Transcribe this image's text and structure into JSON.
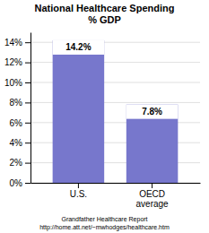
{
  "chart_data": {
    "type": "bar",
    "title": "National Healthcare Spending\n% GDP",
    "categories": [
      "U.S.",
      "OECD\naverage"
    ],
    "values": [
      14.2,
      7.8
    ],
    "value_labels": [
      "14.2%",
      "7.8%"
    ],
    "data_labels": true,
    "color": "#7777cc",
    "ylim": [
      0,
      15
    ],
    "yticks": [
      {
        "value": 0,
        "label": "0%"
      },
      {
        "value": 2,
        "label": "2%"
      },
      {
        "value": 4,
        "label": "4%"
      },
      {
        "value": 6,
        "label": "6%"
      },
      {
        "value": 8,
        "label": "8%"
      },
      {
        "value": 10,
        "label": "10%"
      },
      {
        "value": 12,
        "label": "12%"
      },
      {
        "value": 14,
        "label": "14%"
      }
    ],
    "grid": true,
    "annotations": [
      "Grandfather Healthcare Report",
      "http://home.att.net/~mwhodges/healthcare.htm"
    ]
  }
}
